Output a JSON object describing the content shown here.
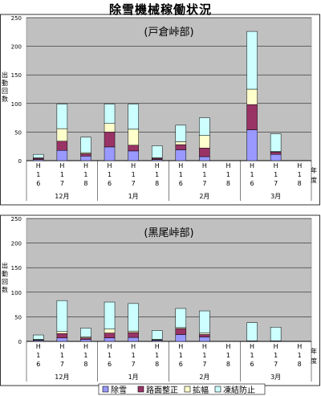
{
  "page": {
    "title": "除雪機械稼働状況"
  },
  "legend": [
    {
      "name": "除雪",
      "color": "#9999ff"
    },
    {
      "name": "路面整正",
      "color": "#993366"
    },
    {
      "name": "拡幅",
      "color": "#ffffcc"
    },
    {
      "name": "凍結防止",
      "color": "#ccffff"
    }
  ],
  "chart_data": [
    {
      "type": "bar",
      "stacked": true,
      "title": "(戸倉峠部)",
      "ylabel": "出動回数",
      "xlabel": "年度",
      "ylim": [
        0,
        250
      ],
      "yticks": [
        0,
        50,
        100,
        150,
        200,
        250
      ],
      "grid": true,
      "categories": [
        "H16",
        "H17",
        "H18",
        "H16",
        "H17",
        "H18",
        "H16",
        "H17",
        "H18",
        "H16",
        "H17",
        "H18"
      ],
      "groups": [
        "12月",
        "1月",
        "2月",
        "3月"
      ],
      "series": [
        {
          "name": "除雪",
          "values": [
            2,
            18,
            8,
            24,
            17,
            2,
            19,
            7,
            0,
            54,
            11,
            0
          ]
        },
        {
          "name": "路面整正",
          "values": [
            2,
            16,
            4,
            26,
            10,
            2,
            9,
            15,
            0,
            44,
            4,
            0
          ]
        },
        {
          "name": "拡幅",
          "values": [
            1,
            22,
            2,
            15,
            28,
            1,
            5,
            22,
            0,
            27,
            1,
            0
          ]
        },
        {
          "name": "凍結防止",
          "values": [
            6,
            43,
            27,
            34,
            44,
            21,
            29,
            31,
            0,
            101,
            31,
            0
          ]
        }
      ]
    },
    {
      "type": "bar",
      "stacked": true,
      "title": "(黒尾峠部)",
      "ylabel": "出動回数",
      "xlabel": "年度",
      "ylim": [
        0,
        250
      ],
      "yticks": [
        0,
        50,
        100,
        150,
        200,
        250
      ],
      "grid": true,
      "categories": [
        "H16",
        "H17",
        "H18",
        "H16",
        "H17",
        "H18",
        "H16",
        "H17",
        "H18",
        "H16",
        "H17",
        "H18"
      ],
      "groups": [
        "12月",
        "1月",
        "2月",
        "3月"
      ],
      "series": [
        {
          "name": "除雪",
          "values": [
            2,
            7,
            4,
            7,
            8,
            2,
            14,
            9,
            0,
            0,
            0,
            0
          ]
        },
        {
          "name": "路面整正",
          "values": [
            1,
            9,
            3,
            10,
            10,
            1,
            12,
            5,
            0,
            1,
            1,
            0
          ]
        },
        {
          "name": "拡幅",
          "values": [
            1,
            4,
            2,
            8,
            3,
            1,
            2,
            3,
            0,
            0,
            0,
            0
          ]
        },
        {
          "name": "凍結防止",
          "values": [
            9,
            63,
            18,
            55,
            56,
            18,
            39,
            45,
            0,
            37,
            28,
            0
          ]
        }
      ]
    }
  ]
}
